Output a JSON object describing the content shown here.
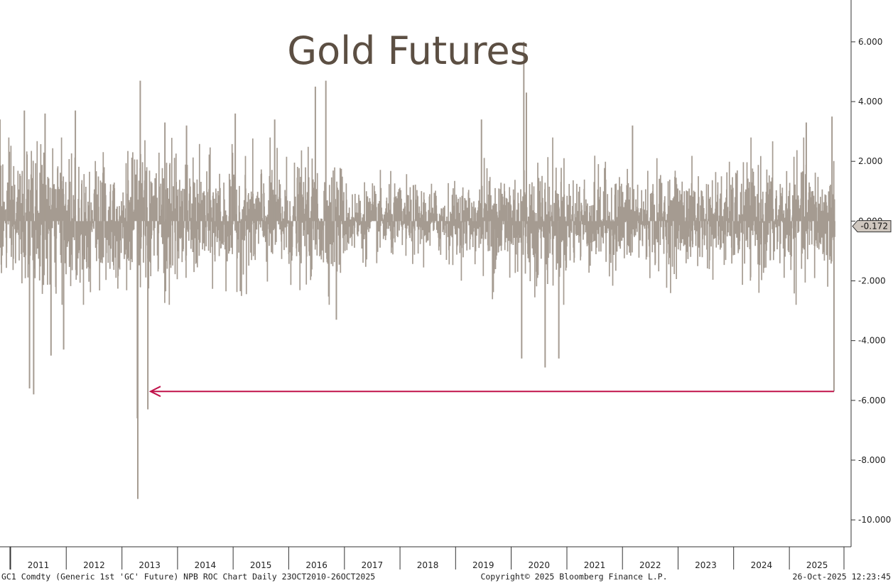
{
  "chart_data": {
    "type": "bar",
    "title": "Gold Futures",
    "xlabel": "",
    "ylabel": "",
    "ylim": [
      -10.9,
      7.4
    ],
    "grid": false,
    "legend": "none",
    "y_ticks": [
      6,
      4,
      2,
      0,
      -2,
      -4,
      -6,
      -8,
      -10
    ],
    "y_tick_labels": [
      "6.000",
      "4.000",
      "2.000",
      "0.000",
      "-2.000",
      "-4.000",
      "-6.000",
      "-8.000",
      "-10.000"
    ],
    "x_ticks": [
      "2011",
      "2012",
      "2013",
      "2014",
      "2015",
      "2016",
      "2017",
      "2018",
      "2019",
      "2020",
      "2021",
      "2022",
      "2023",
      "2024",
      "2025"
    ],
    "x_range": [
      "2010-10-23",
      "2025-10-26"
    ],
    "last_value": -0.172,
    "last_value_label": "-0.172",
    "colors": {
      "bars": "#a59b91",
      "arrow": "#c0124a",
      "title": "#5c4f43",
      "tag_bg": "#cfc7bf"
    },
    "series": [
      {
        "notable_moves": [
          {
            "date": "2010-10-23",
            "value": 3.4
          },
          {
            "date": "2011-04-01",
            "value": 3.7
          },
          {
            "date": "2011-05-05",
            "value": -5.6
          },
          {
            "date": "2011-06-01",
            "value": -5.8
          },
          {
            "date": "2011-08-15",
            "value": 3.6
          },
          {
            "date": "2011-09-23",
            "value": -4.5
          },
          {
            "date": "2011-12-15",
            "value": -4.3
          },
          {
            "date": "2012-03-01",
            "value": 3.7
          },
          {
            "date": "2013-04-12",
            "value": -6.6
          },
          {
            "date": "2013-04-15",
            "value": -9.3
          },
          {
            "date": "2013-05-01",
            "value": 4.7
          },
          {
            "date": "2013-06-20",
            "value": -6.3
          },
          {
            "date": "2013-10-10",
            "value": 3.3
          },
          {
            "date": "2014-03-01",
            "value": 3.2
          },
          {
            "date": "2015-01-15",
            "value": 3.6
          },
          {
            "date": "2015-10-01",
            "value": 3.4
          },
          {
            "date": "2016-06-24",
            "value": 4.5
          },
          {
            "date": "2016-09-01",
            "value": 4.7
          },
          {
            "date": "2016-11-09",
            "value": -3.3
          },
          {
            "date": "2019-06-20",
            "value": 3.4
          },
          {
            "date": "2020-03-10",
            "value": -4.6
          },
          {
            "date": "2020-03-24",
            "value": 6.0
          },
          {
            "date": "2020-04-10",
            "value": 4.3
          },
          {
            "date": "2020-08-11",
            "value": -4.9
          },
          {
            "date": "2020-11-09",
            "value": -4.6
          },
          {
            "date": "2022-03-08",
            "value": 3.2
          },
          {
            "date": "2025-04-22",
            "value": 3.3
          },
          {
            "date": "2025-10-08",
            "value": 3.5
          },
          {
            "date": "2025-10-21",
            "value": -5.7
          },
          {
            "date": "2025-10-24",
            "value": -0.172
          }
        ]
      }
    ],
    "annotation": {
      "type": "arrow",
      "from_date": "2025-10-21",
      "to_date": "2013-04-15",
      "value": -5.7
    }
  },
  "footer": {
    "left": "GC1 Comdty (Generic 1st 'GC' Future) NPB ROC Chart Daily 23OCT2010-26OCT2025",
    "center": "Copyright© 2025 Bloomberg Finance L.P.",
    "right": "26-Oct-2025 12:23:45"
  }
}
